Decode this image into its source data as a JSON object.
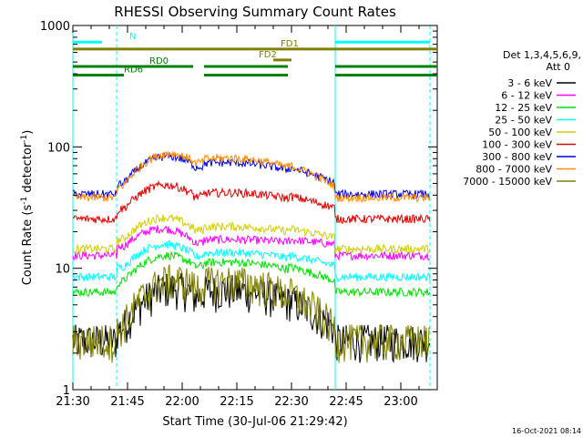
{
  "chart_data": {
    "type": "line",
    "title": "RHESSI Observing Summary Count Rates",
    "xlabel": "Start Time (30-Jul-06 21:29:42)",
    "ylabel": "Count Rate (s⁻¹ detector⁻¹)",
    "ylabel_main": "Count Rate (s",
    "ylabel_sup1": "-1",
    "ylabel_mid": " detector",
    "ylabel_sup2": "-1",
    "ylabel_end": ")",
    "y_scale": "log",
    "ylim": [
      1,
      1000
    ],
    "xlim_minutes": [
      0,
      100
    ],
    "x_ticks": [
      {
        "t": 0,
        "label": "21:30"
      },
      {
        "t": 15,
        "label": "21:45"
      },
      {
        "t": 30,
        "label": "22:00"
      },
      {
        "t": 45,
        "label": "22:15"
      },
      {
        "t": 60,
        "label": "22:30"
      },
      {
        "t": 75,
        "label": "22:45"
      },
      {
        "t": 90,
        "label": "23:00"
      }
    ],
    "y_ticks": [
      {
        "v": 1,
        "label": "1"
      },
      {
        "v": 10,
        "label": "10"
      },
      {
        "v": 100,
        "label": "100"
      },
      {
        "v": 1000,
        "label": "1000"
      }
    ],
    "legend": {
      "header1": "Det 1,3,4,5,6,9,",
      "header2": "Att 0",
      "placement": "right"
    },
    "series": [
      {
        "name": "3 - 6 keV",
        "color": "#000000",
        "level": 3.0,
        "flare": 2.2
      },
      {
        "name": "6 - 12 keV",
        "color": "#ff00ff",
        "level": 15,
        "flare": 1.15
      },
      {
        "name": "12 - 25 keV",
        "color": "#00e000",
        "level": 7.5,
        "flare": 1.5
      },
      {
        "name": "25 - 50 keV",
        "color": "#00ffff",
        "level": 10,
        "flare": 1.35
      },
      {
        "name": "50 - 100 keV",
        "color": "#d0d000",
        "level": 17,
        "flare": 1.3
      },
      {
        "name": "100 - 300 keV",
        "color": "#e00000",
        "level": 30,
        "flare": 1.4
      },
      {
        "name": "300 - 800 keV",
        "color": "#0000e0",
        "level": 48,
        "flare": 1.55
      },
      {
        "name": "800 - 7000 keV",
        "color": "#ff8c00",
        "level": 45,
        "flare": 1.8
      },
      {
        "name": "7000 - 15000 keV",
        "color": "#808000",
        "level": 3.0,
        "flare": 2.6
      }
    ],
    "annotations": [
      {
        "label": "N",
        "color": "#00ffff",
        "y_value": 730
      },
      {
        "label": "FD1",
        "color": "#808000",
        "y_value": 640
      },
      {
        "label": "FD2",
        "color": "#808000",
        "y_value": 520
      },
      {
        "label": "RD0",
        "color": "#008000",
        "y_value": 460
      },
      {
        "label": "RD6",
        "color": "#008000",
        "y_value": 390
      }
    ],
    "night_intervals_minutes": [
      [
        -2,
        12
      ],
      [
        72,
        105
      ]
    ],
    "saa_or_attenuator_times_minutes": [
      12,
      72
    ]
  },
  "timestamp": "16-Oct-2021 08:14"
}
